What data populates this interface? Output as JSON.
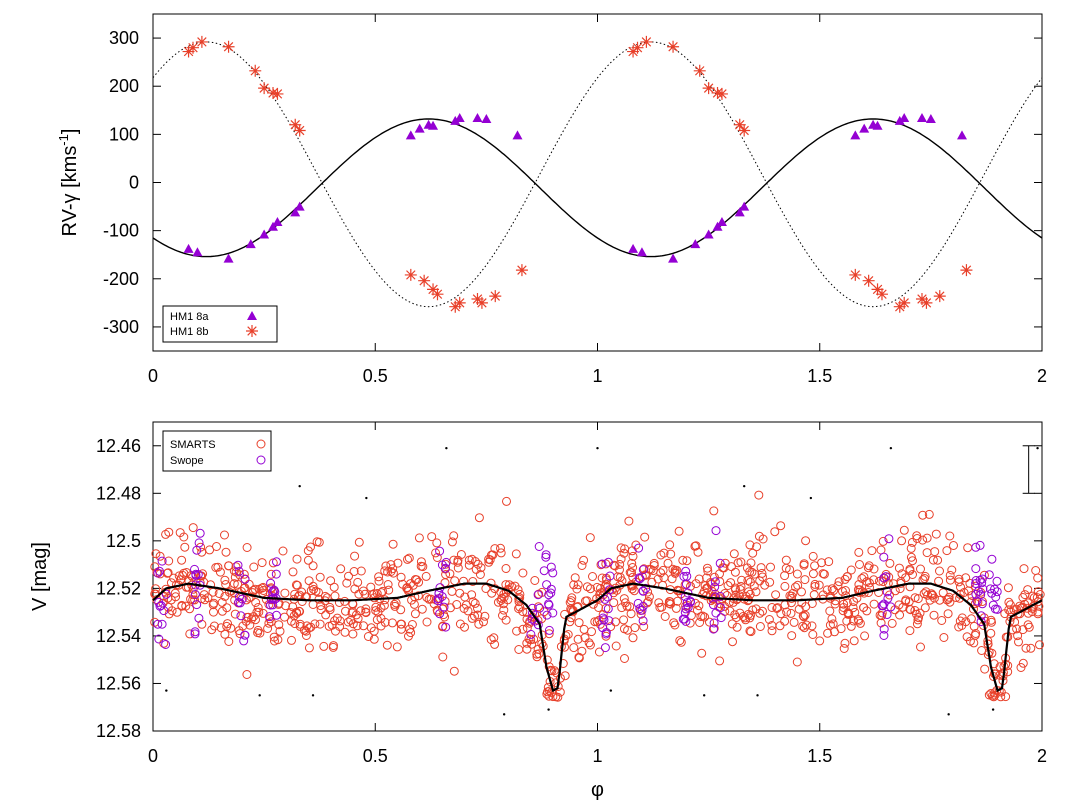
{
  "chart_data": [
    {
      "type": "scatter",
      "panel": "top",
      "xlabel": "",
      "ylabel": "RV-γ [kms",
      "ylabel_sup": "-1",
      "ylabel_close": "]",
      "xlim": [
        0,
        2
      ],
      "ylim": [
        -350,
        350
      ],
      "x_ticks": [
        0,
        0.5,
        1,
        1.5,
        2
      ],
      "x_tick_labels": [
        "0",
        "0.5",
        "1",
        "1.5",
        "2"
      ],
      "y_ticks": [
        300,
        200,
        100,
        0,
        -100,
        -200,
        -300
      ],
      "y_tick_labels": [
        "300",
        "200",
        "100",
        "0",
        "-100",
        "-200",
        "-300"
      ],
      "grid": false,
      "legend_position": "bottom-left",
      "series": [
        {
          "name": "HM1 8a",
          "marker": "filled-triangle",
          "color": "#9400d3",
          "x": [
            0.08,
            0.1,
            0.17,
            0.22,
            0.25,
            0.27,
            0.28,
            0.32,
            0.33,
            0.58,
            0.6,
            0.62,
            0.63,
            0.68,
            0.69,
            0.73,
            0.75,
            0.82,
            1.08,
            1.1,
            1.17,
            1.22,
            1.25,
            1.27,
            1.28,
            1.32,
            1.33,
            1.58,
            1.6,
            1.62,
            1.63,
            1.68,
            1.69,
            1.73,
            1.75,
            1.82
          ],
          "y": [
            -138,
            -145,
            -158,
            -128,
            -108,
            -92,
            -82,
            -62,
            -50,
            98,
            112,
            120,
            118,
            128,
            134,
            134,
            132,
            98,
            -138,
            -145,
            -158,
            -128,
            -108,
            -92,
            -82,
            -62,
            -50,
            98,
            112,
            120,
            118,
            128,
            134,
            134,
            132,
            98
          ]
        },
        {
          "name": "HM1 8b",
          "marker": "star",
          "color": "#e8402a",
          "x": [
            0.08,
            0.09,
            0.11,
            0.17,
            0.23,
            0.25,
            0.27,
            0.28,
            0.32,
            0.33,
            0.58,
            0.61,
            0.63,
            0.64,
            0.68,
            0.69,
            0.73,
            0.74,
            0.77,
            0.83,
            1.08,
            1.09,
            1.11,
            1.17,
            1.23,
            1.25,
            1.27,
            1.28,
            1.32,
            1.33,
            1.58,
            1.61,
            1.63,
            1.64,
            1.68,
            1.69,
            1.73,
            1.74,
            1.77,
            1.83
          ],
          "y": [
            272,
            280,
            292,
            282,
            232,
            196,
            186,
            184,
            120,
            108,
            -192,
            -204,
            -222,
            -232,
            -258,
            -250,
            -242,
            -250,
            -236,
            -182,
            272,
            280,
            292,
            282,
            232,
            196,
            186,
            184,
            120,
            108,
            -192,
            -204,
            -222,
            -232,
            -258,
            -250,
            -242,
            -250,
            -236,
            -182
          ]
        }
      ],
      "models": [
        {
          "for": "HM1 8a",
          "style": "solid",
          "color": "#000000",
          "gamma_offset": -11,
          "amplitude": 143,
          "phase_of_minimum": 0.12
        },
        {
          "for": "HM1 8b",
          "style": "dotted",
          "color": "#000000",
          "gamma_offset": 17,
          "amplitude": 275,
          "phase_of_maximum": 0.12
        }
      ]
    },
    {
      "type": "scatter",
      "panel": "bottom",
      "xlabel": "φ",
      "ylabel": "V [mag]",
      "xlim": [
        0,
        2
      ],
      "ylim": [
        12.58,
        12.45
      ],
      "x_ticks": [
        0,
        0.5,
        1,
        1.5,
        2
      ],
      "x_tick_labels": [
        "0",
        "0.5",
        "1",
        "1.5",
        "2"
      ],
      "y_ticks": [
        12.46,
        12.48,
        12.5,
        12.52,
        12.54,
        12.56,
        12.58
      ],
      "y_tick_labels": [
        "12.46",
        "12.48",
        "12.5",
        "12.52",
        "12.54",
        "12.56",
        "12.58"
      ],
      "grid": false,
      "legend_position": "top-left",
      "series": [
        {
          "name": "SMARTS",
          "marker": "open-circle",
          "color": "#e8402a",
          "count": 1150,
          "mean_mag": 12.522,
          "scatter_mag": 0.011
        },
        {
          "name": "Swope",
          "marker": "open-circle",
          "color": "#9400d3",
          "count": 180,
          "mean_mag": 12.523,
          "scatter_mag": 0.01,
          "phase_groups": [
            0.02,
            0.1,
            0.2,
            0.27,
            0.65,
            0.86,
            0.89
          ]
        }
      ],
      "light_curve": {
        "style": "solid",
        "color": "#000000",
        "phase": [
          0,
          0.03,
          0.08,
          0.15,
          0.25,
          0.35,
          0.45,
          0.55,
          0.62,
          0.7,
          0.75,
          0.8,
          0.84,
          0.87,
          0.885,
          0.9,
          0.91,
          0.915,
          0.925,
          0.93,
          0.95,
          1.0
        ],
        "mag": [
          12.525,
          12.52,
          12.518,
          12.52,
          12.524,
          12.525,
          12.525,
          12.524,
          12.521,
          12.518,
          12.518,
          12.521,
          12.527,
          12.535,
          12.553,
          12.563,
          12.562,
          12.555,
          12.537,
          12.532,
          12.53,
          12.525
        ]
      },
      "error_bar": {
        "phase": 1.97,
        "low": 12.46,
        "high": 12.48
      },
      "sparse_points": [
        {
          "x": 0.03,
          "y": 12.563
        },
        {
          "x": 0.24,
          "y": 12.565
        },
        {
          "x": 0.33,
          "y": 12.477
        },
        {
          "x": 0.36,
          "y": 12.565
        },
        {
          "x": 0.48,
          "y": 12.482
        },
        {
          "x": 0.66,
          "y": 12.461
        },
        {
          "x": 0.79,
          "y": 12.573
        },
        {
          "x": 0.89,
          "y": 12.571
        },
        {
          "x": 1.0,
          "y": 12.461
        },
        {
          "x": 1.03,
          "y": 12.563
        },
        {
          "x": 1.24,
          "y": 12.565
        },
        {
          "x": 1.33,
          "y": 12.477
        },
        {
          "x": 1.36,
          "y": 12.565
        },
        {
          "x": 1.48,
          "y": 12.482
        },
        {
          "x": 1.66,
          "y": 12.461
        },
        {
          "x": 1.79,
          "y": 12.573
        },
        {
          "x": 1.89,
          "y": 12.571
        },
        {
          "x": 1.99,
          "y": 12.461
        }
      ]
    }
  ]
}
